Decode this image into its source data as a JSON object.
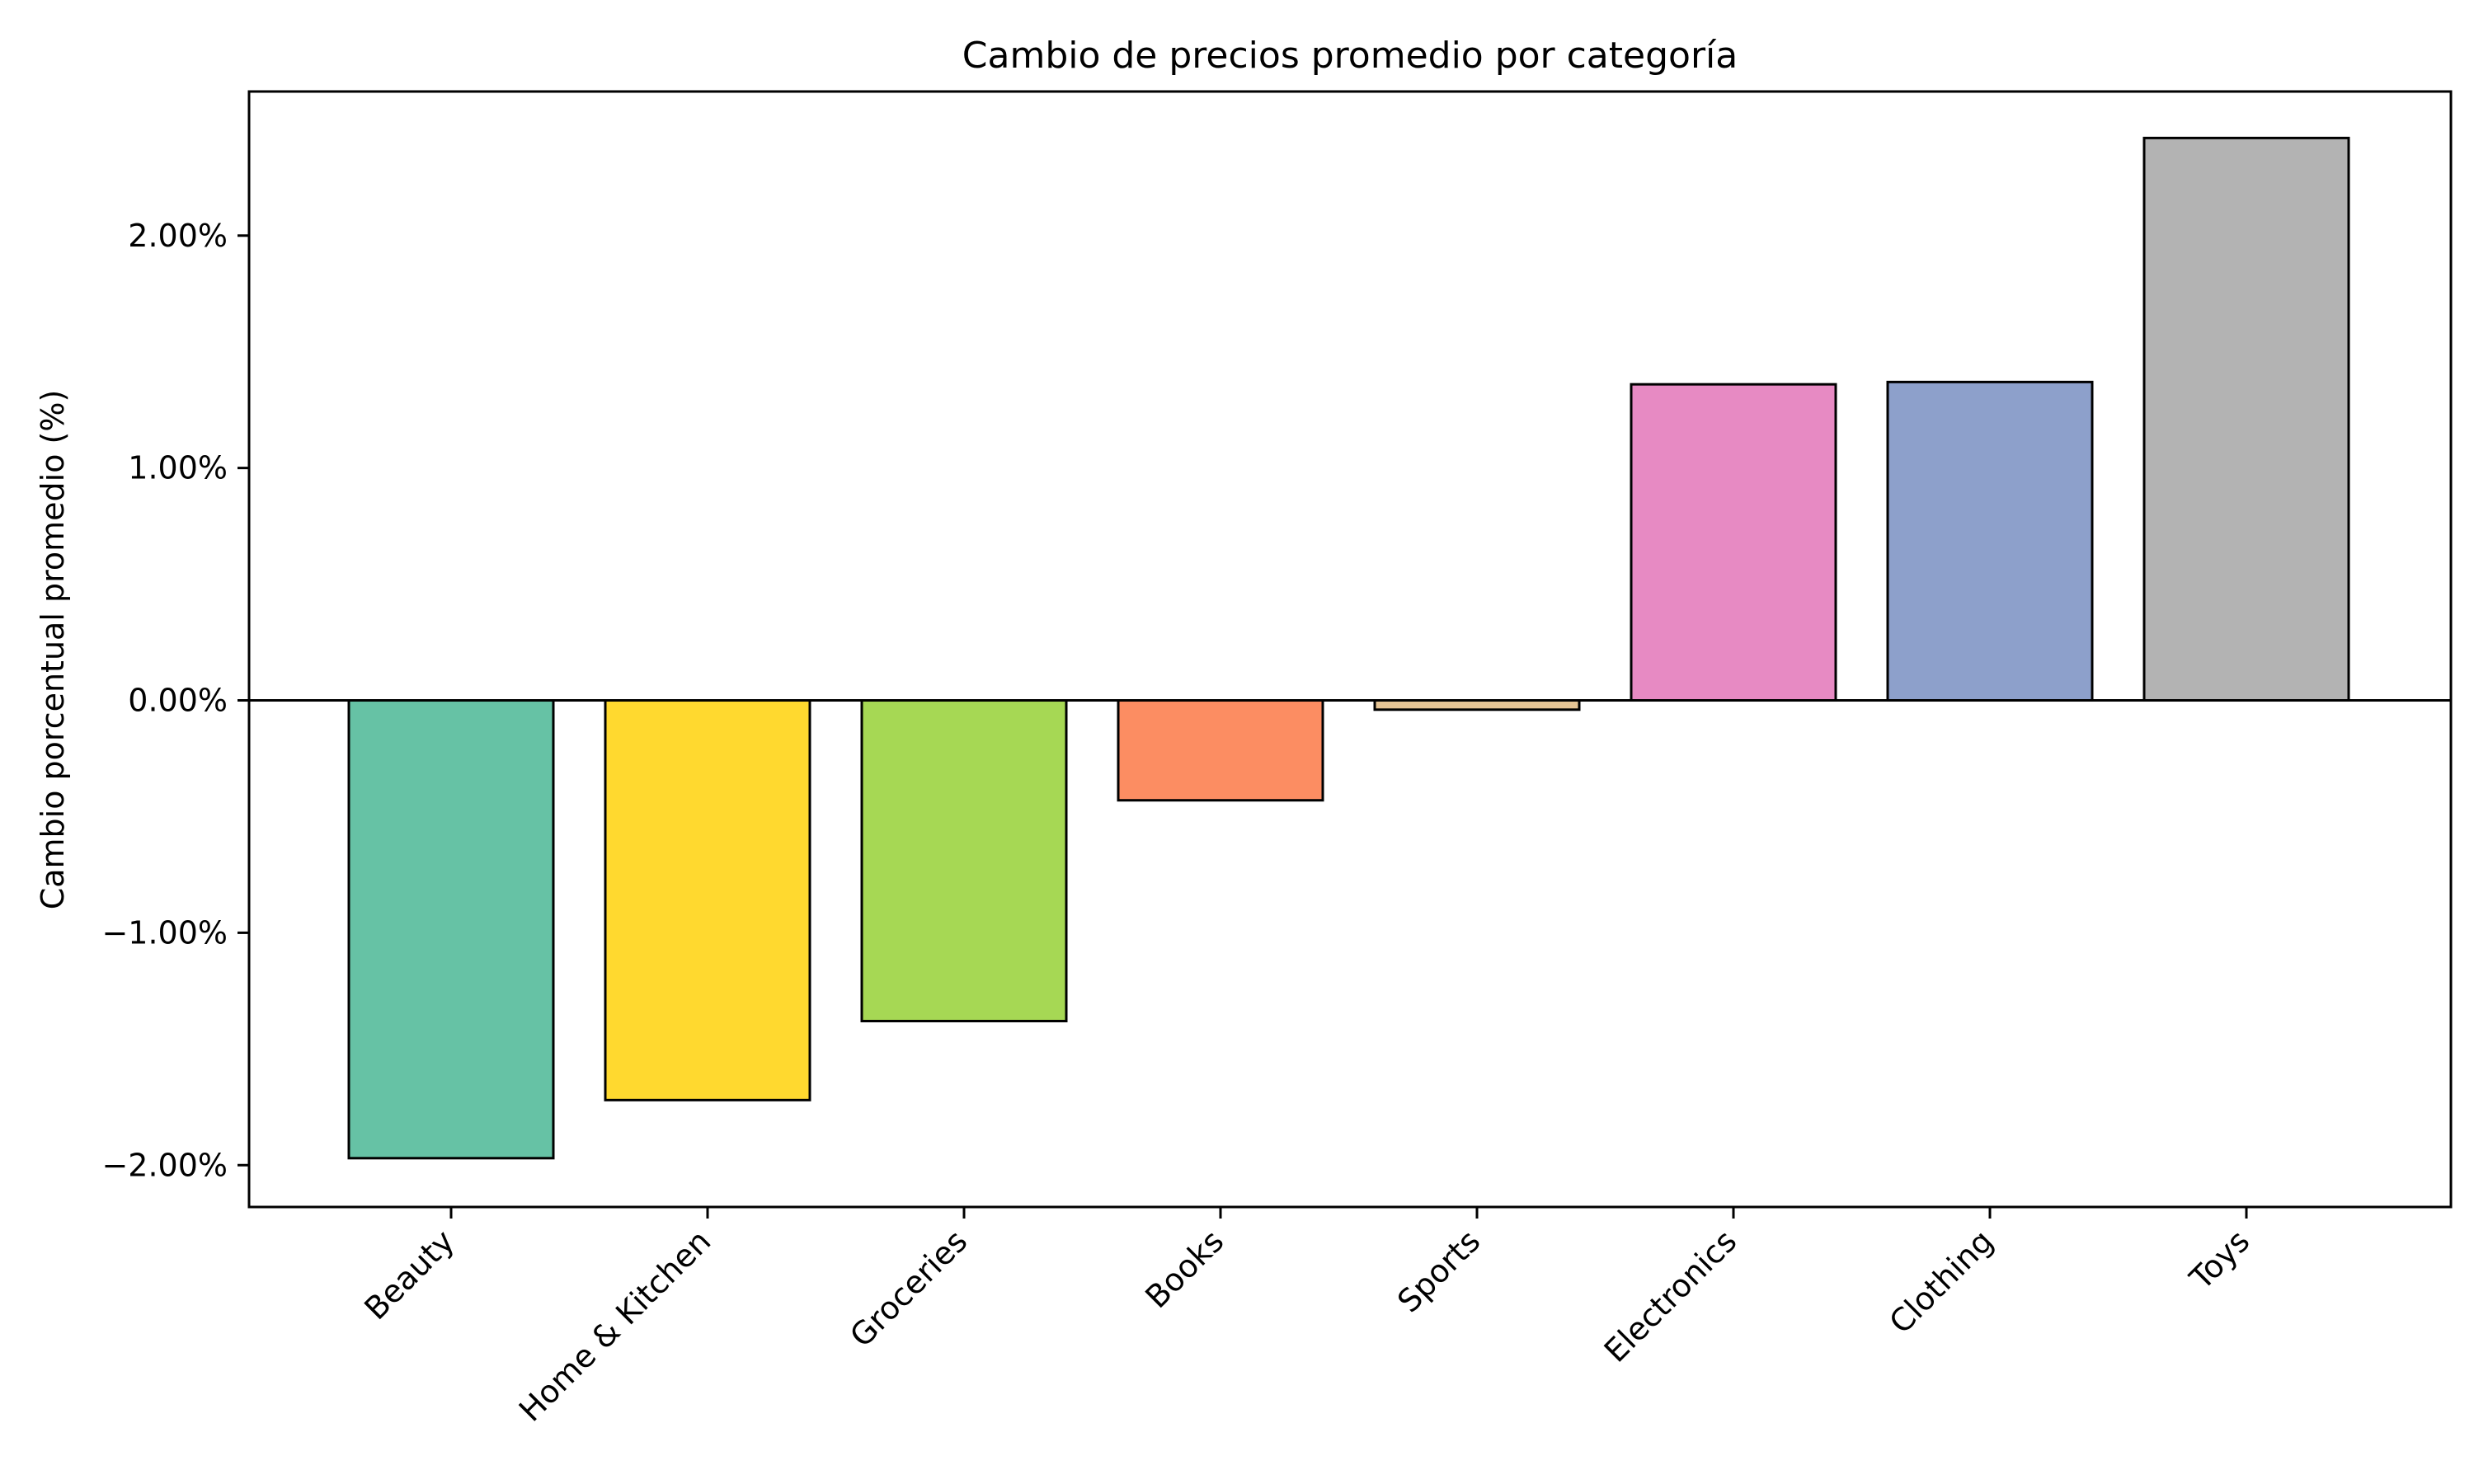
{
  "chart_data": {
    "type": "bar",
    "title": "Cambio de precios promedio por categoría",
    "xlabel": "",
    "ylabel": "Cambio porcentual promedio (%)",
    "categories": [
      "Beauty",
      "Home & Kitchen",
      "Groceries",
      "Books",
      "Sports",
      "Electronics",
      "Clothing",
      "Toys"
    ],
    "values": [
      -1.97,
      -1.72,
      -1.38,
      -0.43,
      -0.04,
      1.36,
      1.37,
      2.42
    ],
    "colors": [
      "#66c2a5",
      "#ffd92f",
      "#a6d854",
      "#fc8d62",
      "#e5c494",
      "#e78ac3",
      "#8da0cb",
      "#b3b3b3"
    ],
    "ylim": [
      -2.18,
      2.62
    ],
    "yticks": [
      -2,
      -1,
      0,
      1,
      2
    ],
    "ytick_labels": [
      "−2.00%",
      "−1.00%",
      "0.00%",
      "1.00%",
      "2.00%"
    ],
    "zero_line": true,
    "grid": false,
    "legend": "none"
  }
}
